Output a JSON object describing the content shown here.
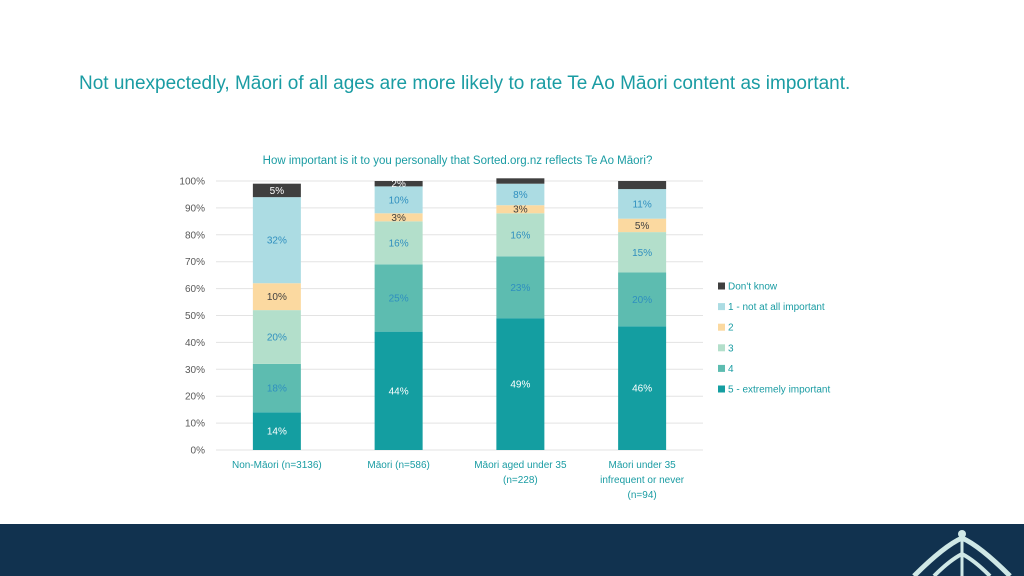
{
  "slide": {
    "headline": "Not unexpectedly, Māori of all ages are more likely to rate Te Ao Māori content as important."
  },
  "colors": {
    "accent": "#1a9ca3",
    "footer": "#11324f",
    "grid": "#e3e3e3",
    "axis_text": "#595959"
  },
  "chart_data": {
    "type": "bar",
    "stacked": true,
    "title": "How important is it to you personally that Sorted.org.nz reflects Te Ao Māori?",
    "xlabel": "",
    "ylabel": "",
    "ylim": [
      0,
      100
    ],
    "y_ticks": [
      "0%",
      "10%",
      "20%",
      "30%",
      "40%",
      "50%",
      "60%",
      "70%",
      "80%",
      "90%",
      "100%"
    ],
    "categories": [
      [
        "Non-Māori (n=3136)"
      ],
      [
        "Māori (n=586)"
      ],
      [
        "Māori aged under 35",
        "(n=228)"
      ],
      [
        "Māori under 35",
        "infrequent or never",
        "(n=94)"
      ]
    ],
    "series": [
      {
        "name": "5 - extremely important",
        "color": "#149ea1",
        "label_color": "#ffffff",
        "values": [
          14,
          44,
          49,
          46
        ],
        "labels": [
          "14%",
          "44%",
          "49%",
          "46%"
        ]
      },
      {
        "name": "4",
        "color": "#5dbcb0",
        "label_color": "#2f8fbf",
        "values": [
          18,
          25,
          23,
          20
        ],
        "labels": [
          "18%",
          "25%",
          "23%",
          "20%"
        ]
      },
      {
        "name": "3",
        "color": "#b3dfcb",
        "label_color": "#2f8fbf",
        "values": [
          20,
          16,
          16,
          15
        ],
        "labels": [
          "20%",
          "16%",
          "16%",
          "15%"
        ]
      },
      {
        "name": "2",
        "color": "#fbd9a0",
        "label_color": "#404040",
        "values": [
          10,
          3,
          3,
          5
        ],
        "labels": [
          "10%",
          "3%",
          "3%",
          "5%"
        ]
      },
      {
        "name": "1 - not at all important",
        "color": "#acdce3",
        "label_color": "#2f8fbf",
        "values": [
          32,
          10,
          8,
          11
        ],
        "labels": [
          "32%",
          "10%",
          "8%",
          "11%"
        ]
      },
      {
        "name": "Don't know",
        "color": "#3f3f3f",
        "label_color": "#ffffff",
        "values": [
          5,
          2,
          2,
          3
        ],
        "labels": [
          "5%",
          "2%",
          "",
          ""
        ]
      }
    ],
    "legend_order": [
      "Don't know",
      "1 - not at all important",
      "2",
      "3",
      "4",
      "5 - extremely important"
    ],
    "legend_position": "right",
    "grid": true
  }
}
